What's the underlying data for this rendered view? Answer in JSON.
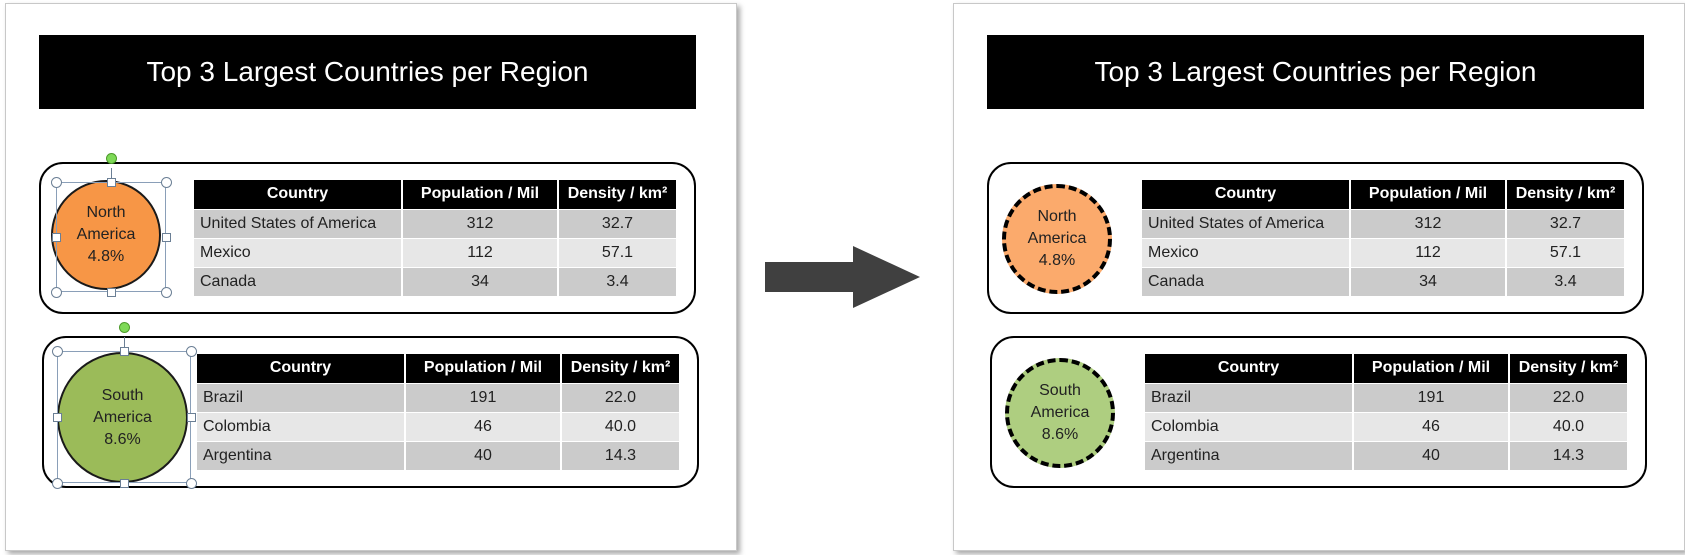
{
  "title": "Top 3 Largest Countries per Region",
  "columns": [
    "Country",
    "Population / Mil",
    "Density / km²"
  ],
  "north_america": {
    "circle_line1": "North",
    "circle_line2": "America",
    "circle_pct": "4.8%",
    "rows": [
      [
        "United States of America",
        "312",
        "32.7"
      ],
      [
        "Mexico",
        "112",
        "57.1"
      ],
      [
        "Canada",
        "34",
        "3.4"
      ]
    ]
  },
  "south_america": {
    "circle_line1": "South",
    "circle_line2": "America",
    "circle_pct": "8.6%",
    "rows": [
      [
        "Brazil",
        "191",
        "22.0"
      ],
      [
        "Colombia",
        "46",
        "40.0"
      ],
      [
        "Argentina",
        "40",
        "14.3"
      ]
    ]
  },
  "colors": {
    "north_america_fill": "#f79646",
    "south_america_fill": "#9bbb59",
    "north_america_fill_after": "#fbaa6c",
    "south_america_fill_after": "#aece80",
    "arrow": "#404040"
  },
  "icons": {
    "arrow": "right-arrow-icon"
  }
}
